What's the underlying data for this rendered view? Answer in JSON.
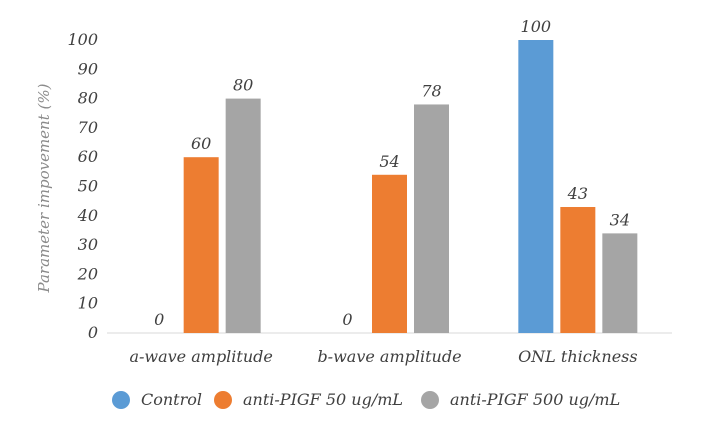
{
  "chart_data": {
    "type": "bar",
    "title": "",
    "xlabel": "",
    "ylabel": "Parameter impovement (%)",
    "ylim": [
      0,
      100
    ],
    "yticks": [
      0,
      10,
      20,
      30,
      40,
      50,
      60,
      70,
      80,
      90,
      100
    ],
    "categories": [
      "a-wave amplitude",
      "b-wave amplitude",
      "ONL thickness"
    ],
    "series": [
      {
        "name": "Control",
        "color": "#5B9BD5",
        "values": [
          0,
          0,
          100
        ]
      },
      {
        "name": "anti-PIGF 50 ug/mL",
        "color": "#ED7D31",
        "values": [
          60,
          54,
          43
        ]
      },
      {
        "name": "anti-PIGF 500 ug/mL",
        "color": "#A5A5A5",
        "values": [
          80,
          78,
          34
        ]
      }
    ],
    "grid": false,
    "legend_position": "bottom"
  }
}
